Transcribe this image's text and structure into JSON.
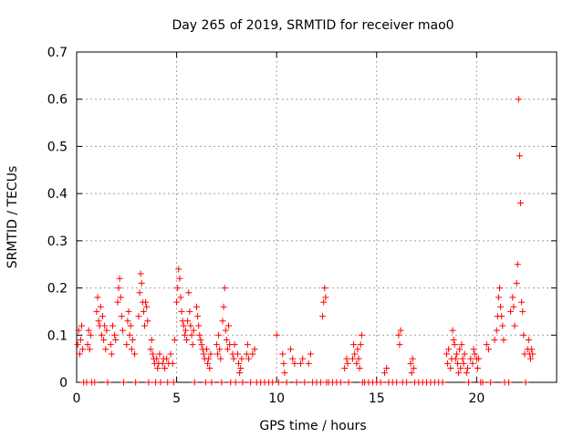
{
  "chart_data": {
    "type": "scatter",
    "title": "Day 265 of 2019, SRMTID for receiver mao0",
    "xlabel": "GPS time / hours",
    "ylabel": "SRMTID / TECUs",
    "xlim": [
      0,
      24
    ],
    "ylim": [
      0,
      0.7
    ],
    "x_ticks": [
      0,
      5,
      10,
      15,
      20
    ],
    "y_ticks": [
      0,
      0.1,
      0.2,
      0.3,
      0.4,
      0.5,
      0.6,
      0.7
    ],
    "grid": true,
    "marker": "+",
    "color": "#ff0000",
    "series": [
      {
        "name": "SRMTID",
        "points": [
          [
            0.05,
            0.08
          ],
          [
            0.1,
            0.11
          ],
          [
            0.15,
            0.06
          ],
          [
            0.2,
            0.09
          ],
          [
            0.25,
            0.12
          ],
          [
            0.3,
            0.07
          ],
          [
            0.35,
            0.0
          ],
          [
            0.5,
            0.0
          ],
          [
            0.55,
            0.08
          ],
          [
            0.6,
            0.11
          ],
          [
            0.65,
            0.07
          ],
          [
            0.7,
            0.1
          ],
          [
            0.75,
            0.0
          ],
          [
            0.9,
            0.0
          ],
          [
            1.0,
            0.15
          ],
          [
            1.05,
            0.18
          ],
          [
            1.1,
            0.13
          ],
          [
            1.15,
            0.12
          ],
          [
            1.2,
            0.16
          ],
          [
            1.25,
            0.1
          ],
          [
            1.3,
            0.14
          ],
          [
            1.35,
            0.09
          ],
          [
            1.4,
            0.12
          ],
          [
            1.45,
            0.07
          ],
          [
            1.5,
            0.11
          ],
          [
            1.55,
            0.0
          ],
          [
            1.7,
            0.08
          ],
          [
            1.75,
            0.06
          ],
          [
            1.8,
            0.12
          ],
          [
            1.9,
            0.1
          ],
          [
            1.95,
            0.09
          ],
          [
            2.05,
            0.17
          ],
          [
            2.1,
            0.2
          ],
          [
            2.15,
            0.22
          ],
          [
            2.2,
            0.18
          ],
          [
            2.25,
            0.14
          ],
          [
            2.3,
            0.11
          ],
          [
            2.35,
            0.0
          ],
          [
            2.5,
            0.08
          ],
          [
            2.55,
            0.13
          ],
          [
            2.6,
            0.15
          ],
          [
            2.65,
            0.1
          ],
          [
            2.7,
            0.12
          ],
          [
            2.75,
            0.07
          ],
          [
            2.8,
            0.09
          ],
          [
            2.9,
            0.06
          ],
          [
            2.95,
            0.0
          ],
          [
            3.1,
            0.14
          ],
          [
            3.15,
            0.19
          ],
          [
            3.2,
            0.23
          ],
          [
            3.25,
            0.21
          ],
          [
            3.3,
            0.17
          ],
          [
            3.35,
            0.15
          ],
          [
            3.4,
            0.12
          ],
          [
            3.45,
            0.17
          ],
          [
            3.5,
            0.16
          ],
          [
            3.55,
            0.13
          ],
          [
            3.6,
            0.0
          ],
          [
            3.7,
            0.07
          ],
          [
            3.75,
            0.09
          ],
          [
            3.8,
            0.06
          ],
          [
            3.85,
            0.05
          ],
          [
            3.9,
            0.04
          ],
          [
            3.95,
            0.0
          ],
          [
            4.0,
            0.05
          ],
          [
            4.05,
            0.03
          ],
          [
            4.1,
            0.04
          ],
          [
            4.15,
            0.06
          ],
          [
            4.2,
            0.0
          ],
          [
            4.3,
            0.04
          ],
          [
            4.35,
            0.05
          ],
          [
            4.4,
            0.03
          ],
          [
            4.5,
            0.05
          ],
          [
            4.55,
            0.0
          ],
          [
            4.6,
            0.04
          ],
          [
            4.7,
            0.06
          ],
          [
            4.8,
            0.04
          ],
          [
            4.85,
            0.0
          ],
          [
            4.9,
            0.09
          ],
          [
            5.0,
            0.17
          ],
          [
            5.05,
            0.2
          ],
          [
            5.1,
            0.24
          ],
          [
            5.15,
            0.22
          ],
          [
            5.2,
            0.18
          ],
          [
            5.25,
            0.15
          ],
          [
            5.3,
            0.13
          ],
          [
            5.35,
            0.12
          ],
          [
            5.4,
            0.1
          ],
          [
            5.45,
            0.11
          ],
          [
            5.5,
            0.09
          ],
          [
            5.55,
            0.13
          ],
          [
            5.6,
            0.19
          ],
          [
            5.65,
            0.15
          ],
          [
            5.7,
            0.12
          ],
          [
            5.75,
            0.1
          ],
          [
            5.8,
            0.08
          ],
          [
            5.85,
            0.11
          ],
          [
            5.9,
            0.0
          ],
          [
            6.0,
            0.16
          ],
          [
            6.05,
            0.14
          ],
          [
            6.1,
            0.12
          ],
          [
            6.15,
            0.1
          ],
          [
            6.2,
            0.09
          ],
          [
            6.25,
            0.08
          ],
          [
            6.3,
            0.07
          ],
          [
            6.35,
            0.06
          ],
          [
            6.4,
            0.05
          ],
          [
            6.45,
            0.0
          ],
          [
            6.5,
            0.07
          ],
          [
            6.55,
            0.04
          ],
          [
            6.6,
            0.05
          ],
          [
            6.65,
            0.03
          ],
          [
            6.7,
            0.06
          ],
          [
            6.75,
            0.0
          ],
          [
            7.0,
            0.08
          ],
          [
            7.05,
            0.06
          ],
          [
            7.1,
            0.1
          ],
          [
            7.15,
            0.07
          ],
          [
            7.2,
            0.05
          ],
          [
            7.25,
            0.0
          ],
          [
            7.3,
            0.13
          ],
          [
            7.35,
            0.16
          ],
          [
            7.4,
            0.2
          ],
          [
            7.45,
            0.11
          ],
          [
            7.5,
            0.09
          ],
          [
            7.55,
            0.07
          ],
          [
            7.6,
            0.12
          ],
          [
            7.65,
            0.08
          ],
          [
            7.7,
            0.0
          ],
          [
            7.8,
            0.06
          ],
          [
            7.85,
            0.05
          ],
          [
            7.9,
            0.08
          ],
          [
            7.95,
            0.0
          ],
          [
            8.05,
            0.06
          ],
          [
            8.1,
            0.04
          ],
          [
            8.15,
            0.02
          ],
          [
            8.2,
            0.03
          ],
          [
            8.25,
            0.05
          ],
          [
            8.3,
            0.0
          ],
          [
            8.5,
            0.06
          ],
          [
            8.55,
            0.08
          ],
          [
            8.6,
            0.05
          ],
          [
            8.7,
            0.0
          ],
          [
            8.8,
            0.06
          ],
          [
            8.9,
            0.07
          ],
          [
            9.0,
            0.0
          ],
          [
            9.2,
            0.0
          ],
          [
            9.4,
            0.0
          ],
          [
            9.6,
            0.0
          ],
          [
            9.8,
            0.0
          ],
          [
            10.0,
            0.1
          ],
          [
            10.1,
            0.0
          ],
          [
            10.3,
            0.06
          ],
          [
            10.35,
            0.04
          ],
          [
            10.4,
            0.02
          ],
          [
            10.5,
            0.0
          ],
          [
            10.7,
            0.07
          ],
          [
            10.8,
            0.05
          ],
          [
            10.9,
            0.04
          ],
          [
            11.0,
            0.0
          ],
          [
            11.2,
            0.04
          ],
          [
            11.3,
            0.05
          ],
          [
            11.4,
            0.0
          ],
          [
            11.6,
            0.04
          ],
          [
            11.7,
            0.06
          ],
          [
            11.8,
            0.0
          ],
          [
            12.0,
            0.0
          ],
          [
            12.2,
            0.0
          ],
          [
            12.3,
            0.14
          ],
          [
            12.35,
            0.17
          ],
          [
            12.4,
            0.2
          ],
          [
            12.45,
            0.18
          ],
          [
            12.5,
            0.0
          ],
          [
            12.6,
            0.0
          ],
          [
            12.8,
            0.0
          ],
          [
            13.0,
            0.0
          ],
          [
            13.2,
            0.0
          ],
          [
            13.4,
            0.03
          ],
          [
            13.5,
            0.05
          ],
          [
            13.55,
            0.04
          ],
          [
            13.6,
            0.0
          ],
          [
            13.8,
            0.05
          ],
          [
            13.85,
            0.08
          ],
          [
            13.9,
            0.06
          ],
          [
            14.0,
            0.04
          ],
          [
            14.05,
            0.07
          ],
          [
            14.1,
            0.05
          ],
          [
            14.15,
            0.03
          ],
          [
            14.2,
            0.08
          ],
          [
            14.25,
            0.1
          ],
          [
            14.3,
            0.0
          ],
          [
            14.4,
            0.0
          ],
          [
            14.6,
            0.0
          ],
          [
            14.8,
            0.0
          ],
          [
            15.0,
            0.0
          ],
          [
            15.2,
            0.0
          ],
          [
            15.4,
            0.02
          ],
          [
            15.5,
            0.03
          ],
          [
            15.6,
            0.0
          ],
          [
            15.8,
            0.0
          ],
          [
            16.0,
            0.0
          ],
          [
            16.1,
            0.1
          ],
          [
            16.15,
            0.08
          ],
          [
            16.2,
            0.11
          ],
          [
            16.3,
            0.0
          ],
          [
            16.5,
            0.0
          ],
          [
            16.7,
            0.04
          ],
          [
            16.75,
            0.02
          ],
          [
            16.8,
            0.05
          ],
          [
            16.85,
            0.03
          ],
          [
            16.9,
            0.0
          ],
          [
            17.1,
            0.0
          ],
          [
            17.3,
            0.0
          ],
          [
            17.5,
            0.0
          ],
          [
            17.7,
            0.0
          ],
          [
            17.9,
            0.0
          ],
          [
            18.1,
            0.0
          ],
          [
            18.3,
            0.0
          ],
          [
            18.5,
            0.06
          ],
          [
            18.55,
            0.04
          ],
          [
            18.6,
            0.07
          ],
          [
            18.7,
            0.03
          ],
          [
            18.75,
            0.05
          ],
          [
            18.8,
            0.11
          ],
          [
            18.85,
            0.09
          ],
          [
            18.9,
            0.08
          ],
          [
            18.95,
            0.05
          ],
          [
            19.0,
            0.06
          ],
          [
            19.05,
            0.04
          ],
          [
            19.1,
            0.02
          ],
          [
            19.15,
            0.07
          ],
          [
            19.2,
            0.03
          ],
          [
            19.25,
            0.08
          ],
          [
            19.3,
            0.05
          ],
          [
            19.35,
            0.04
          ],
          [
            19.4,
            0.06
          ],
          [
            19.5,
            0.02
          ],
          [
            19.55,
            0.03
          ],
          [
            19.6,
            0.0
          ],
          [
            19.7,
            0.05
          ],
          [
            19.8,
            0.04
          ],
          [
            19.85,
            0.07
          ],
          [
            19.9,
            0.06
          ],
          [
            20.0,
            0.05
          ],
          [
            20.05,
            0.03
          ],
          [
            20.1,
            0.05
          ],
          [
            20.2,
            0.0
          ],
          [
            20.3,
            0.0
          ],
          [
            20.5,
            0.08
          ],
          [
            20.6,
            0.07
          ],
          [
            20.7,
            0.0
          ],
          [
            20.9,
            0.09
          ],
          [
            21.0,
            0.11
          ],
          [
            21.05,
            0.14
          ],
          [
            21.1,
            0.18
          ],
          [
            21.15,
            0.2
          ],
          [
            21.2,
            0.16
          ],
          [
            21.25,
            0.14
          ],
          [
            21.3,
            0.12
          ],
          [
            21.35,
            0.09
          ],
          [
            21.4,
            0.0
          ],
          [
            21.6,
            0.0
          ],
          [
            21.7,
            0.15
          ],
          [
            21.8,
            0.18
          ],
          [
            21.85,
            0.16
          ],
          [
            21.9,
            0.12
          ],
          [
            22.0,
            0.21
          ],
          [
            22.05,
            0.25
          ],
          [
            22.1,
            0.6
          ],
          [
            22.15,
            0.48
          ],
          [
            22.2,
            0.38
          ],
          [
            22.25,
            0.17
          ],
          [
            22.3,
            0.15
          ],
          [
            22.35,
            0.1
          ],
          [
            22.4,
            0.06
          ],
          [
            22.45,
            0.0
          ],
          [
            22.55,
            0.07
          ],
          [
            22.6,
            0.09
          ],
          [
            22.65,
            0.06
          ],
          [
            22.7,
            0.05
          ],
          [
            22.75,
            0.07
          ],
          [
            22.8,
            0.06
          ]
        ]
      }
    ]
  }
}
